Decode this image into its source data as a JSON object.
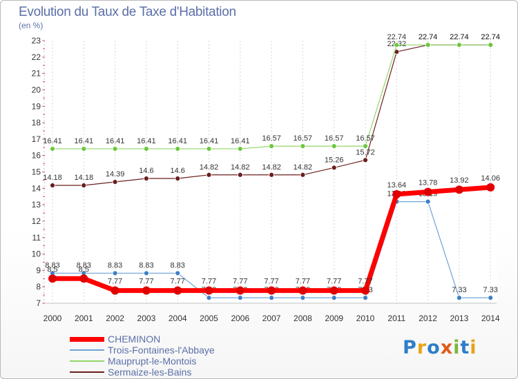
{
  "title": "Evolution du Taux de Taxe d'Habitation",
  "unit": "(en %)",
  "brand": {
    "text": "Proxiti",
    "colors": [
      "#2e7ec9",
      "#e8a21a",
      "#2e7ec9",
      "#e05a1c",
      "#7ab83c",
      "#2e7ec9",
      "#e8a21a"
    ]
  },
  "chart_data": {
    "type": "line",
    "x": [
      2000,
      2001,
      2002,
      2003,
      2004,
      2005,
      2006,
      2007,
      2008,
      2009,
      2010,
      2011,
      2012,
      2013,
      2014
    ],
    "ylim": [
      7,
      23
    ],
    "yticks": [
      7,
      8,
      9,
      10,
      11,
      12,
      13,
      14,
      15,
      16,
      17,
      18,
      19,
      20,
      21,
      22,
      23
    ],
    "grid": "vertical",
    "legend_position": "bottom-left",
    "series": [
      {
        "name": "Sermaize-les-Bains",
        "color": "#6b1e1e",
        "marker": "#6b1e1e",
        "width": 1.2,
        "radius": 3.5,
        "values": [
          14.18,
          14.18,
          14.39,
          14.6,
          14.6,
          14.82,
          14.82,
          14.82,
          14.82,
          15.26,
          15.72,
          22.32,
          22.74,
          22.74,
          22.74
        ],
        "labels": [
          "14.18",
          "14.18",
          "14.39",
          "14.6",
          "14.6",
          "14.82",
          "14.82",
          "14.82",
          "14.82",
          "15.26",
          "15.72",
          "22.32",
          "22.74",
          "22.74",
          "22.74"
        ]
      },
      {
        "name": "Mauprupt-le-Montois",
        "color": "#8fd66a",
        "marker": "#6cc83c",
        "width": 1.2,
        "radius": 3.5,
        "values": [
          16.41,
          16.41,
          16.41,
          16.41,
          16.41,
          16.41,
          16.41,
          16.57,
          16.57,
          16.57,
          16.57,
          22.74,
          22.74,
          22.74,
          22.74
        ],
        "labels": [
          "16.41",
          "16.41",
          "16.41",
          "16.41",
          "16.41",
          "16.41",
          "16.41",
          "16.57",
          "16.57",
          "16.57",
          "16.57",
          "22.74",
          "22.74",
          "22.74",
          "22.74"
        ]
      },
      {
        "name": "Trois-Fontaines-l'Abbaye",
        "color": "#6fa3d6",
        "marker": "#3d7fc4",
        "width": 1.2,
        "radius": 3.5,
        "values": [
          8.83,
          8.83,
          8.83,
          8.83,
          8.83,
          7.33,
          7.33,
          7.33,
          7.33,
          7.33,
          7.33,
          13.19,
          13.19,
          7.33,
          7.33
        ],
        "labels": [
          "8.83",
          "8.83",
          "8.83",
          "8.83",
          "8.83",
          "7.33",
          "7.33",
          "7.33",
          "7.33",
          "7.33",
          "7.33",
          "13.19",
          "13.19",
          "7.33",
          "7.33"
        ]
      },
      {
        "name": "CHEMINON",
        "color": "#ff0000",
        "marker": "#e00000",
        "width": 7,
        "radius": 6,
        "values": [
          8.5,
          8.5,
          7.77,
          7.77,
          7.77,
          7.77,
          7.77,
          7.77,
          7.77,
          7.77,
          7.77,
          13.64,
          13.78,
          13.92,
          14.06
        ],
        "labels": [
          "8.5",
          "8.5",
          "7.77",
          "7.77",
          "7.77",
          "7.77",
          "7.77",
          "7.77",
          "7.77",
          "7.77",
          "7.77",
          "13.64",
          "13.78",
          "13.92",
          "14.06"
        ]
      }
    ]
  },
  "legend": [
    {
      "name": "CHEMINON",
      "color": "#ff0000",
      "thickness": 7
    },
    {
      "name": "Trois-Fontaines-l'Abbaye",
      "color": "#6fa3d6",
      "thickness": 2
    },
    {
      "name": "Mauprupt-le-Montois",
      "color": "#8fd66a",
      "thickness": 2
    },
    {
      "name": "Sermaize-les-Bains",
      "color": "#6b1e1e",
      "thickness": 2
    }
  ]
}
